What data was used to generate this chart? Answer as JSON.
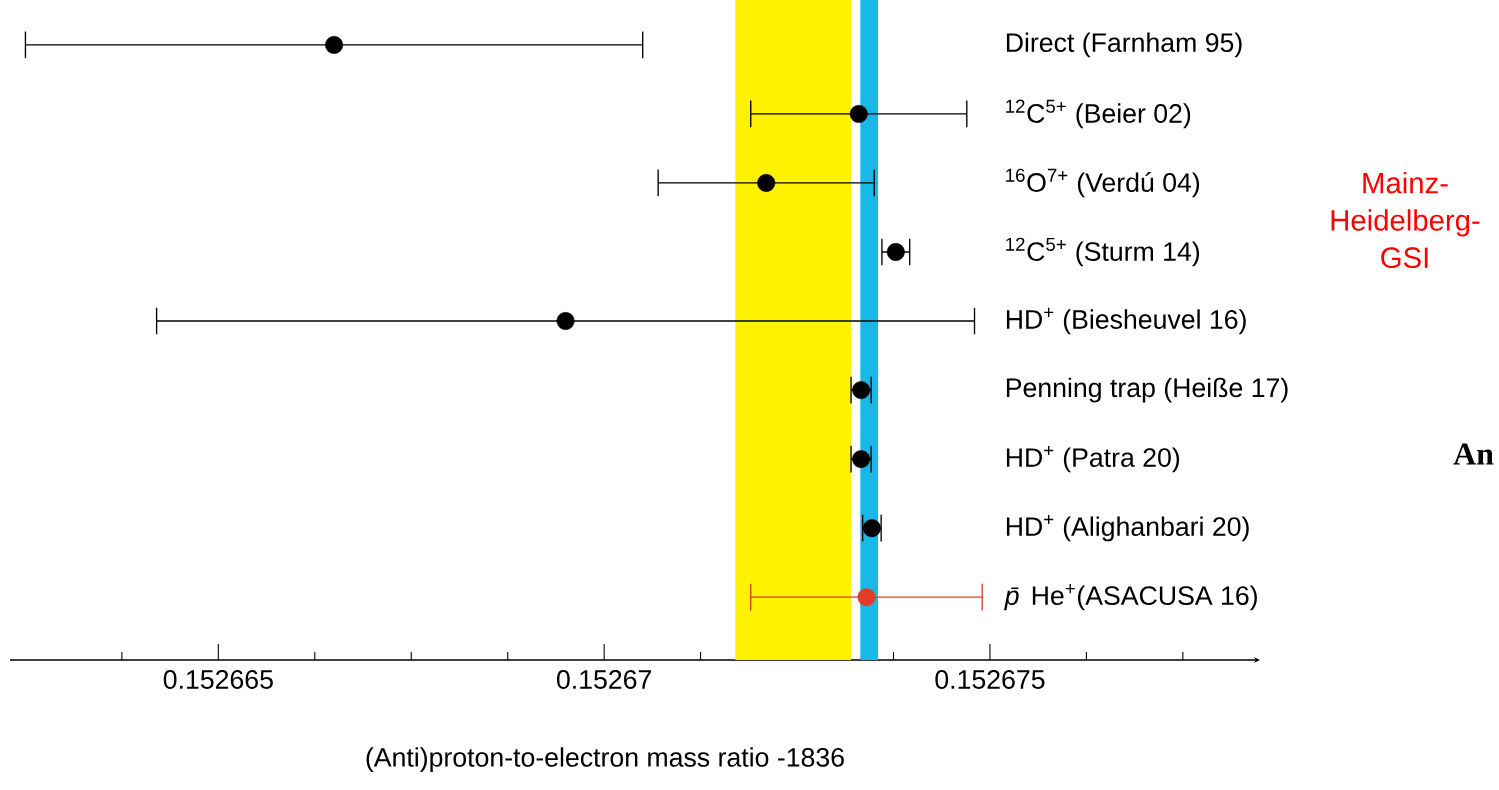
{
  "chart_data": {
    "type": "scatter",
    "orientation": "horizontal",
    "xlabel": "(Anti)proton-to-electron mass ratio  -1836",
    "categories": [
      "Direct (Farnham 95)",
      "$^{12}$C$^{5+}$ (Beier 02)",
      "$^{16}$O$^{7+}$  (Verdú 04)",
      "$^{12}$C$^{5+}$ (Sturm 14)",
      "HD$^{+}$ (Biesheuvel 16)",
      "Penning trap (Heiße 17)",
      "HD$^{+}$ (Patra 20)",
      "HD$^{+}$ (Alighanbari 20)",
      "*p̄* He$^{+}$(ASACUSA 16)"
    ],
    "values": [
      0.1526665,
      0.1526733,
      0.1526721,
      0.15267378,
      0.1526695,
      0.15267333,
      0.15267333,
      0.15267347,
      0.1526734
    ],
    "errors": [
      4e-06,
      1.4e-06,
      1.4e-06,
      1.8e-07,
      5.3e-06,
      1.3e-07,
      1.3e-07,
      1.2e-07,
      1.5e-06
    ],
    "colors": [
      "#000000",
      "#000000",
      "#000000",
      "#000000",
      "#000000",
      "#000000",
      "#000000",
      "#000000",
      "#e03c28"
    ],
    "marker": "circle",
    "bands": [
      {
        "axis": "x",
        "from": 0.1526717,
        "to": 0.1526732,
        "color": "#fff200"
      },
      {
        "axis": "x",
        "from": 0.15267332,
        "to": 0.15267355,
        "color": "#1ab8e8"
      }
    ],
    "xlim": [
      0.1526623,
      0.1526785
    ],
    "xticks": [
      0.152665,
      0.15267,
      0.152675,
      {
        "value": 0.15266375,
        "label": null
      },
      {
        "value": 0.15266625,
        "label": null
      },
      {
        "value": 0.1526675,
        "label": null
      },
      {
        "value": 0.15266875,
        "label": null
      },
      {
        "value": 0.15267125,
        "label": null
      },
      {
        "value": 0.1526725,
        "label": null
      },
      {
        "value": 0.15267375,
        "label": null
      },
      {
        "value": 0.15267625,
        "label": null
      },
      {
        "value": 0.1526775,
        "label": null
      }
    ],
    "annotations": [
      "Mainz-Heidelberg-GSI",
      "An"
    ]
  }
}
